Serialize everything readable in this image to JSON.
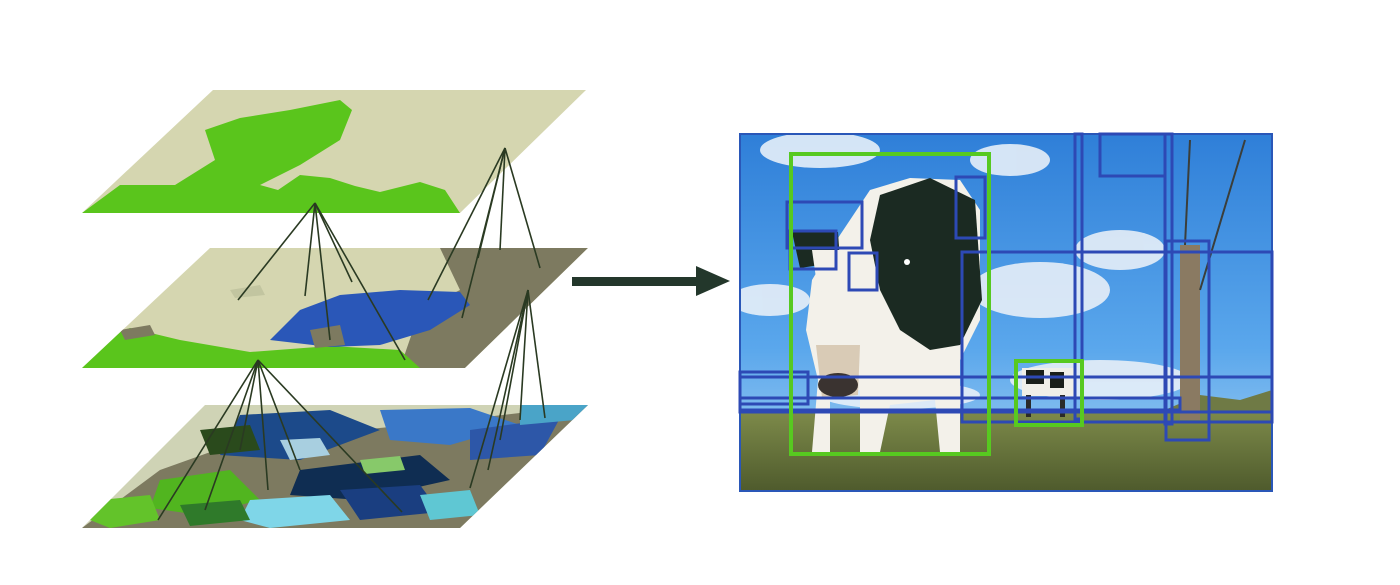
{
  "figure": {
    "layers": [
      {
        "id": "top-layer",
        "level": "coarse"
      },
      {
        "id": "middle-layer",
        "level": "intermediate"
      },
      {
        "id": "bottom-layer",
        "level": "fine"
      }
    ],
    "arrow": {
      "color": "#23372b"
    },
    "photo": {
      "subject": "cow-in-field",
      "border_color": "#2a57b8"
    },
    "colors": {
      "segment_green": "#5ac51c",
      "region_blue": "#2a57b8",
      "proposal_blue": "#2d49b5",
      "proposal_green": "#57c920",
      "tan": "#d5d6b0",
      "olive": "#7d7a60",
      "link_line": "#2a3a22"
    }
  }
}
